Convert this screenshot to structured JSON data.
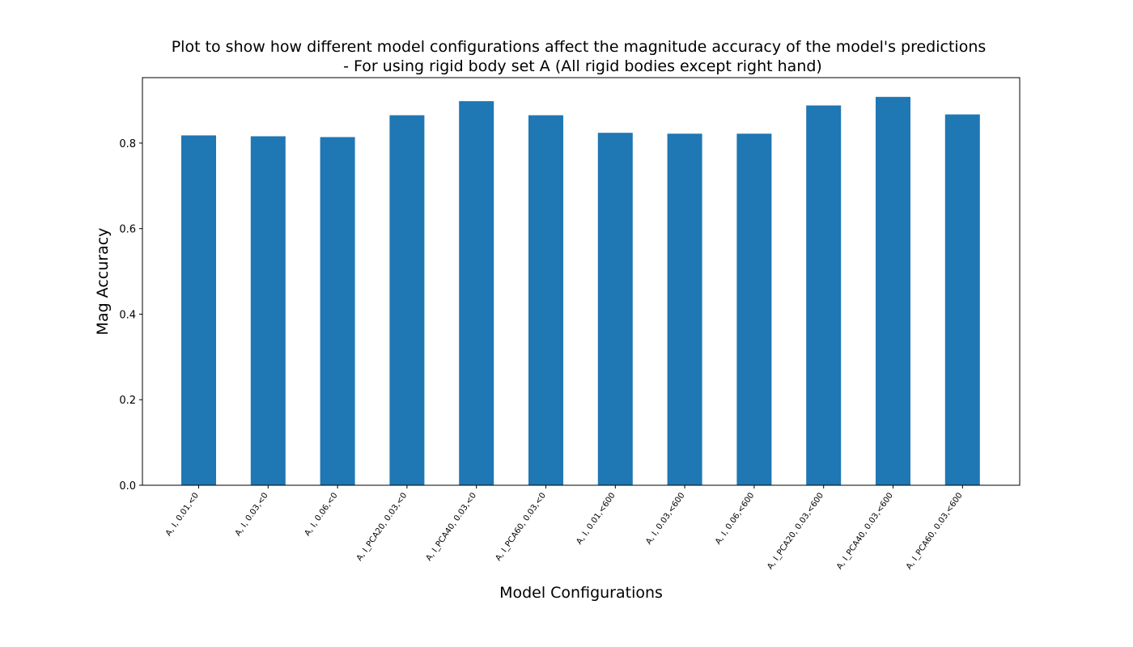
{
  "chart_data": {
    "type": "bar",
    "title_line1": "Plot to show how different model configurations affect the magnitude accuracy of the model's predictions",
    "title_line2": "- For using rigid body set A (All rigid bodies except right hand)",
    "xlabel": "Model Configurations",
    "ylabel": "Mag Accuracy",
    "categories": [
      "A, I, 0.01,<0",
      "A, I, 0.03,<0",
      "A, I, 0.06,<0",
      "A, I_PCA20, 0.03,<0",
      "A, I_PCA40, 0.03,<0",
      "A, I_PCA60, 0.03,<0",
      "A, I, 0.01,<600",
      "A, I, 0.03,<600",
      "A, I, 0.06,<600",
      "A, I_PCA20, 0.03,<600",
      "A, I_PCA40, 0.03,<600",
      "A, I_PCA60, 0.03,<600"
    ],
    "values": [
      0.818,
      0.816,
      0.814,
      0.865,
      0.898,
      0.865,
      0.824,
      0.822,
      0.822,
      0.888,
      0.908,
      0.867
    ],
    "ylim": [
      0,
      0.953
    ],
    "yticks": [
      0.0,
      0.2,
      0.4,
      0.6,
      0.8
    ],
    "ytick_labels": [
      "0.0",
      "0.2",
      "0.4",
      "0.6",
      "0.8"
    ],
    "bar_color": "#1f77b4",
    "grid": false
  }
}
